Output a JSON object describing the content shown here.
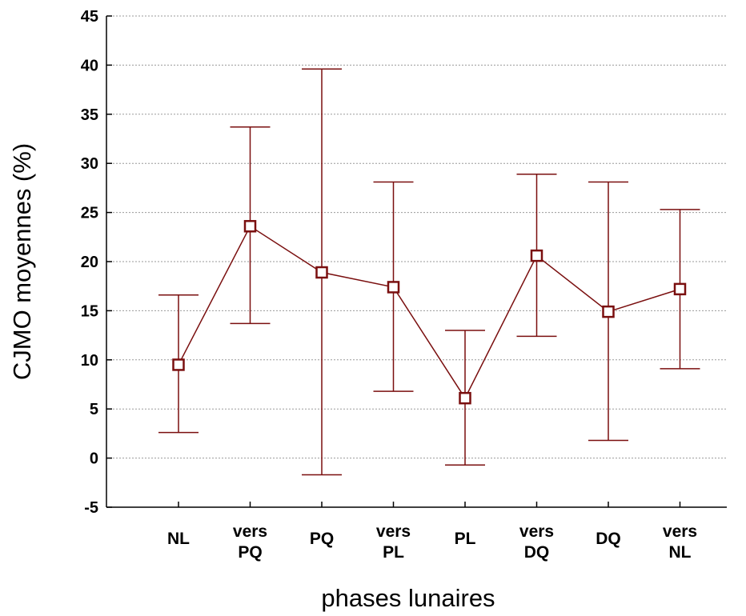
{
  "chart_data": {
    "type": "line",
    "xlabel": "phases lunaires",
    "ylabel": "CJMO moyennes (%)",
    "ylim": [
      -5,
      45
    ],
    "yticks": [
      -5,
      0,
      5,
      10,
      15,
      20,
      25,
      30,
      35,
      40,
      45
    ],
    "grid": true,
    "categories": [
      [
        "NL"
      ],
      [
        "vers",
        "PQ"
      ],
      [
        "PQ"
      ],
      [
        "vers",
        "PL"
      ],
      [
        "PL"
      ],
      [
        "vers",
        "DQ"
      ],
      [
        "DQ"
      ],
      [
        "vers",
        "NL"
      ]
    ],
    "series": [
      {
        "values": [
          9.5,
          23.6,
          18.9,
          17.4,
          6.1,
          20.6,
          14.9,
          17.2
        ],
        "error_low": [
          2.6,
          13.7,
          -1.7,
          6.8,
          -0.7,
          12.4,
          1.8,
          9.1
        ],
        "error_high": [
          16.6,
          33.7,
          39.6,
          28.1,
          13.0,
          28.9,
          28.1,
          25.3
        ],
        "marker": "square"
      }
    ],
    "colors": {
      "series": "#7a0f0f",
      "grid": "#9a9a9a",
      "axis": "#000000"
    }
  }
}
